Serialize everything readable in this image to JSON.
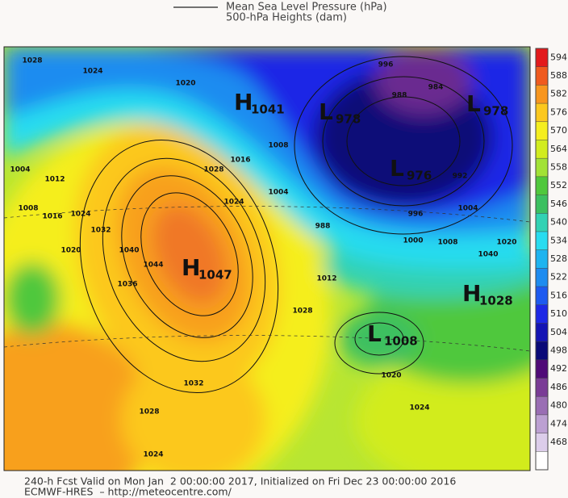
{
  "header": {
    "legend": [
      "Mean Sea Level Pressure (hPa)",
      "500-hPa Heights (dam)"
    ]
  },
  "colorbar": {
    "levels": [
      594,
      588,
      582,
      576,
      570,
      564,
      558,
      552,
      546,
      540,
      534,
      528,
      522,
      516,
      510,
      504,
      498,
      492,
      486,
      480,
      474,
      468
    ],
    "colors": [
      "#e31a1c",
      "#f05a1e",
      "#f8961e",
      "#fcc81e",
      "#f5ee1e",
      "#d2ec1e",
      "#a2e236",
      "#50c83c",
      "#3cc060",
      "#32d2b4",
      "#28dcf0",
      "#1eb4f0",
      "#1e8cf0",
      "#1e5af0",
      "#1e28e6",
      "#1414b4",
      "#0a0a78",
      "#500a78",
      "#7a3c96",
      "#9a6eb4",
      "#bca0d2",
      "#dccdea",
      "#ffffff"
    ]
  },
  "centers": [
    {
      "letter": "H",
      "value": 1041
    },
    {
      "letter": "L",
      "value": 978
    },
    {
      "letter": "L",
      "value": 978
    },
    {
      "letter": "L",
      "value": 976
    },
    {
      "letter": "H",
      "value": 1047
    },
    {
      "letter": "H",
      "value": 1028
    },
    {
      "letter": "L",
      "value": 1008
    }
  ],
  "isobar_labels": [
    1028,
    1024,
    1020,
    1004,
    1012,
    1008,
    1016,
    1024,
    1020,
    1032,
    1040,
    1044,
    1036,
    1028,
    1024,
    1016,
    1008,
    1004,
    988,
    1000,
    996,
    992,
    1004,
    1008,
    1012,
    1028,
    1040,
    1020,
    1032,
    1028,
    1024,
    1020,
    1024,
    996,
    988,
    984
  ],
  "footer": [
    "240-h Fcst Valid on Mon Jan  2 00:00:00 2017, Initialized on Fri Dec 23 00:00:00 2016",
    "ECMWF-HRES  – http://meteocentre.com/"
  ]
}
